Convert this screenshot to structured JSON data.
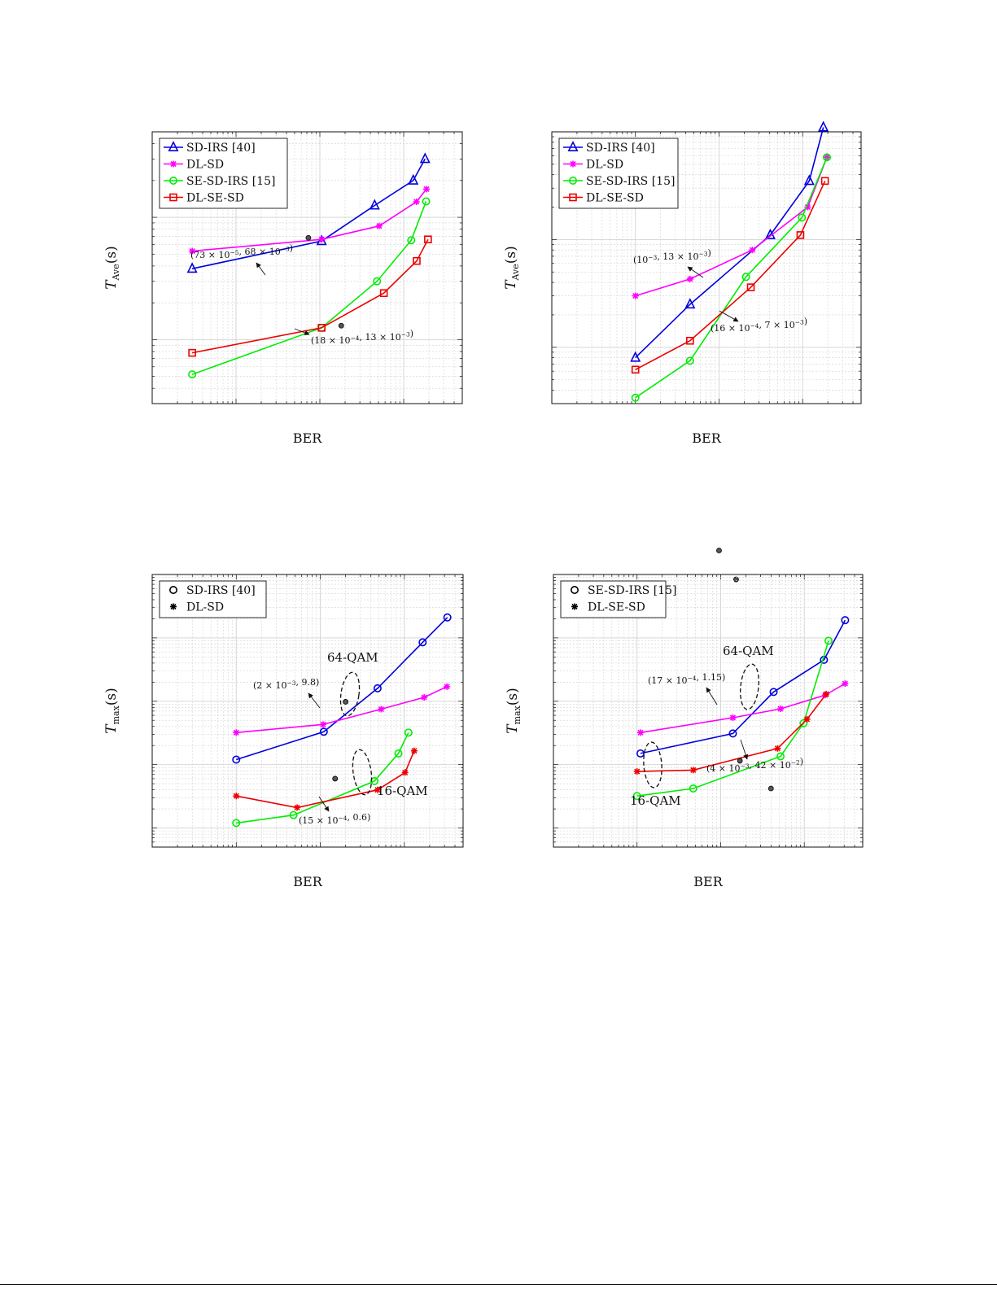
{
  "page": {
    "background": "#ffffff"
  },
  "colors": {
    "blue": "#0000dd",
    "magenta": "#ff00ff",
    "green": "#00ee00",
    "red": "#ee0000",
    "grid": "#cfcfcf",
    "axes": "#111111"
  },
  "chart_data": [
    {
      "id": "ave-16qam",
      "type": "line",
      "xlabel": "BER",
      "ylabel": "T",
      "ylabel_sub": "Ave",
      "ylabel_suffix": "(s)",
      "x_scale": "log",
      "y_scale": "log",
      "xlim": [
        1e-05,
        0.05
      ],
      "ylim": [
        0.003,
        0.5
      ],
      "grid": true,
      "legend_position": "top-left",
      "legend_entries": [
        "SD-IRS [40]",
        "DL-SD",
        "SE-SD-IRS [15]",
        "DL-SE-SD"
      ],
      "series": [
        {
          "name": "SD-IRS [40]",
          "color": "#0000dd",
          "marker": "triangle",
          "x": [
            3e-05,
            0.00105,
            0.0045,
            0.013,
            0.018
          ],
          "y": [
            0.038,
            0.064,
            0.125,
            0.2,
            0.3
          ]
        },
        {
          "name": "DL-SD",
          "color": "#ff00ff",
          "marker": "asterisk",
          "x": [
            3e-05,
            0.00105,
            0.0051,
            0.0142,
            0.0187
          ],
          "y": [
            0.053,
            0.066,
            0.085,
            0.134,
            0.17
          ]
        },
        {
          "name": "SE-SD-IRS [15]",
          "color": "#00ee00",
          "marker": "circle",
          "x": [
            3e-05,
            0.00105,
            0.0048,
            0.0123,
            0.0185
          ],
          "y": [
            0.0052,
            0.0125,
            0.03,
            0.065,
            0.135
          ]
        },
        {
          "name": "DL-SE-SD",
          "color": "#ee0000",
          "marker": "square",
          "x": [
            3e-05,
            0.00105,
            0.0058,
            0.0143,
            0.0195
          ],
          "y": [
            0.0078,
            0.0125,
            0.024,
            0.044,
            0.066
          ]
        }
      ],
      "annotations": [
        {
          "text": "(73 × 10⁻⁵, 68 × 10⁻³)",
          "x": 0.00073,
          "y": 0.068
        },
        {
          "text": "(18 × 10⁻⁴, 13 × 10⁻³)",
          "x": 0.0018,
          "y": 0.013
        }
      ]
    },
    {
      "id": "ave-64qam",
      "type": "line",
      "xlabel": "BER",
      "ylabel": "T",
      "ylabel_sub": "Ave",
      "ylabel_suffix": "(s)",
      "x_scale": "log",
      "y_scale": "log",
      "xlim": [
        1e-05,
        0.05
      ],
      "ylim": [
        0.3,
        100
      ],
      "grid": true,
      "legend_position": "top-left",
      "legend_entries": [
        "SD-IRS [40]",
        "DL-SD",
        "SE-SD-IRS [15]",
        "DL-SE-SD"
      ],
      "series": [
        {
          "name": "SD-IRS [40]",
          "color": "#0000dd",
          "marker": "triangle",
          "x": [
            0.0001,
            0.00045,
            0.0041,
            0.012,
            0.0177
          ],
          "y": [
            0.8,
            2.5,
            11,
            35,
            110
          ]
        },
        {
          "name": "DL-SD",
          "color": "#ff00ff",
          "marker": "asterisk",
          "x": [
            0.0001,
            0.00045,
            0.0025,
            0.0115,
            0.0195
          ],
          "y": [
            3.0,
            4.3,
            8.0,
            20,
            58
          ]
        },
        {
          "name": "SE-SD-IRS [15]",
          "color": "#00ee00",
          "marker": "circle",
          "x": [
            0.0001,
            0.00045,
            0.0021,
            0.0098,
            0.0195
          ],
          "y": [
            0.34,
            0.75,
            4.5,
            16,
            58
          ]
        },
        {
          "name": "DL-SE-SD",
          "color": "#ee0000",
          "marker": "square",
          "x": [
            0.0001,
            0.00045,
            0.0024,
            0.0094,
            0.0185
          ],
          "y": [
            0.62,
            1.15,
            3.6,
            11,
            35
          ]
        }
      ],
      "annotations": [
        {
          "text": "(10⁻³, 13 × 10⁻³)",
          "x": 0.001,
          "y": 0.013
        },
        {
          "text": "(16 × 10⁻⁴, 7 × 10⁻³)",
          "x": 0.0016,
          "y": 0.007
        }
      ]
    },
    {
      "id": "max-sd",
      "type": "line",
      "xlabel": "BER",
      "ylabel": "T",
      "ylabel_sub": "max",
      "ylabel_suffix": "(s)",
      "x_scale": "log",
      "y_scale": "log",
      "xlim": [
        1e-05,
        0.05
      ],
      "ylim": [
        0.05,
        1000
      ],
      "grid": true,
      "legend_position": "top-left",
      "legend_entries": [
        "SD-IRS [40]",
        "DL-SD"
      ],
      "series": [
        {
          "name": "64-QAM SD-IRS",
          "color": "#0000dd",
          "marker": "circle",
          "x": [
            0.0001,
            0.0011,
            0.0048,
            0.0165,
            0.0325
          ],
          "y": [
            1.2,
            3.3,
            16,
            85,
            210
          ]
        },
        {
          "name": "64-QAM DL-SD",
          "color": "#ff00ff",
          "marker": "asterisk",
          "x": [
            0.0001,
            0.00108,
            0.0053,
            0.0172,
            0.0321
          ],
          "y": [
            3.2,
            4.3,
            7.5,
            11.5,
            17
          ]
        },
        {
          "name": "16-QAM SD-IRS",
          "color": "#00ee00",
          "marker": "circle",
          "x": [
            0.0001,
            0.00048,
            0.0044,
            0.0085,
            0.0112
          ],
          "y": [
            0.12,
            0.16,
            0.55,
            1.5,
            3.2
          ]
        },
        {
          "name": "16-QAM DL-SD",
          "color": "#ee0000",
          "marker": "asterisk",
          "x": [
            0.0001,
            0.00053,
            0.0048,
            0.0102,
            0.0131
          ],
          "y": [
            0.32,
            0.21,
            0.4,
            0.75,
            1.65
          ]
        }
      ],
      "annotations": [
        {
          "text": "(2 × 10⁻³, 9.8)",
          "x": 0.002,
          "y": 9.8
        },
        {
          "text": "(15 × 10⁻⁴, 0.6)",
          "x": 0.0015,
          "y": 0.6
        },
        {
          "text": "64-QAM"
        },
        {
          "text": "16-QAM"
        }
      ]
    },
    {
      "id": "max-se",
      "type": "line",
      "xlabel": "BER",
      "ylabel": "T",
      "ylabel_sub": "max",
      "ylabel_suffix": "(s)",
      "x_scale": "log",
      "y_scale": "log",
      "xlim": [
        1e-05,
        0.05
      ],
      "ylim": [
        0.05,
        1000
      ],
      "grid": true,
      "legend_position": "top-left",
      "legend_entries": [
        "SE-SD-IRS [15]",
        "DL-SE-SD"
      ],
      "series": [
        {
          "name": "64-QAM SE-SD-IRS",
          "color": "#0000dd",
          "marker": "circle",
          "x": [
            0.00011,
            0.0014,
            0.0043,
            0.0172,
            0.0308
          ],
          "y": [
            1.5,
            3.1,
            14,
            45,
            190
          ]
        },
        {
          "name": "64-QAM DL-SE-SD",
          "color": "#ff00ff",
          "marker": "asterisk",
          "x": [
            0.00011,
            0.0014,
            0.0052,
            0.0178,
            0.0308
          ],
          "y": [
            3.2,
            5.5,
            7.6,
            12.5,
            19
          ]
        },
        {
          "name": "16-QAM SE-SD-IRS",
          "color": "#00ee00",
          "marker": "circle",
          "x": [
            0.0001,
            0.00047,
            0.0052,
            0.0098,
            0.0195
          ],
          "y": [
            0.32,
            0.42,
            1.35,
            4.5,
            90
          ]
        },
        {
          "name": "16-QAM DL-SE-SD",
          "color": "#ee0000",
          "marker": "asterisk",
          "x": [
            0.0001,
            0.00047,
            0.0048,
            0.0108,
            0.0183
          ],
          "y": [
            0.78,
            0.82,
            1.8,
            5.2,
            13
          ]
        }
      ],
      "annotations": [
        {
          "text": "(17 × 10⁻⁴, 1.15)",
          "x": 0.0017,
          "y": 1.15
        },
        {
          "text": "(4 × 10⁻³, 42 × 10⁻²)",
          "x": 0.004,
          "y": 0.42
        },
        {
          "text": "64-QAM"
        },
        {
          "text": "16-QAM"
        }
      ]
    }
  ]
}
